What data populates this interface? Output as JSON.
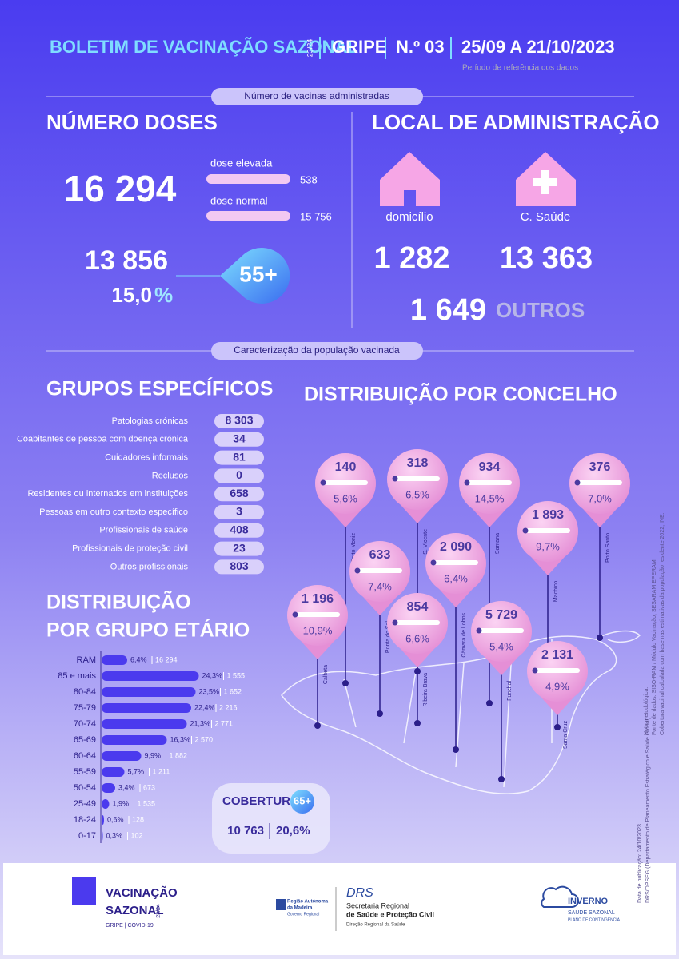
{
  "header": {
    "title": "BOLETIM DE VACINAÇÃO SAZONAL",
    "season": "23/24",
    "disease": "GRIPE",
    "number": "N.º 03",
    "period": "25/09 A 21/10/2023",
    "period_note": "Período de referência dos dados"
  },
  "section1": "Número de vacinas administradas",
  "doses": {
    "title": "NÚMERO DOSES",
    "total": "16 294",
    "high_label": "dose elevada",
    "high": "538",
    "normal_label": "dose normal",
    "normal": "15 756",
    "age55_count": "13 856",
    "age55_pct": "15,0",
    "pct_sign": "%",
    "age55_badge": "55+"
  },
  "local": {
    "title": "LOCAL DE ADMINISTRAÇÃO",
    "home_label": "domicílio",
    "home": "1 282",
    "center_label": "C. Saúde",
    "center": "13 363",
    "other": "1 649",
    "other_label": "OUTROS"
  },
  "section2": "Caracterização da população vacinada",
  "groups": {
    "title": "GRUPOS ESPECÍFICOS",
    "rows": [
      [
        "Patologias crónicas",
        "8 303"
      ],
      [
        "Coabitantes de pessoa com doença crónica",
        "34"
      ],
      [
        "Cuidadores informais",
        "81"
      ],
      [
        "Reclusos",
        "0"
      ],
      [
        "Residentes ou internados em instituições",
        "658"
      ],
      [
        "Pessoas em outro contexto específico",
        "3"
      ],
      [
        "Profissionais de saúde",
        "408"
      ],
      [
        "Profissionais de proteção civil",
        "23"
      ],
      [
        "Outros profissionais",
        "803"
      ]
    ]
  },
  "municipalities": {
    "title": "DISTRIBUIÇÃO POR CONCELHO",
    "items": [
      {
        "name": "Porto Moniz",
        "value": "140",
        "pct": "5,6%"
      },
      {
        "name": "S. Vicente",
        "value": "318",
        "pct": "6,5%"
      },
      {
        "name": "Santana",
        "value": "934",
        "pct": "14,5%"
      },
      {
        "name": "Porto Santo",
        "value": "376",
        "pct": "7,0%"
      },
      {
        "name": "Machico",
        "value": "1 893",
        "pct": "9,7%"
      },
      {
        "name": "Câmara de Lobos",
        "value": "2 090",
        "pct": "6,4%"
      },
      {
        "name": "Ponta do Sol",
        "value": "633",
        "pct": "7,4%"
      },
      {
        "name": "Calheta",
        "value": "1 196",
        "pct": "10,9%"
      },
      {
        "name": "Ribeira Brava",
        "value": "854",
        "pct": "6,6%"
      },
      {
        "name": "Funchal",
        "value": "5 729",
        "pct": "5,4%"
      },
      {
        "name": "Santa Cruz",
        "value": "2 131",
        "pct": "4,9%"
      }
    ]
  },
  "age": {
    "title_line1": "DISTRIBUIÇÃO",
    "title_line2": "POR GRUPO ETÁRIO",
    "groups": [
      {
        "label": "RAM",
        "pct": 6.4,
        "pct_label": "6,4%",
        "count": "16 294"
      },
      {
        "label": "85 e mais",
        "pct": 24.3,
        "pct_label": "24,3%",
        "count": "1 555"
      },
      {
        "label": "80-84",
        "pct": 23.5,
        "pct_label": "23,5%",
        "count": "1 652"
      },
      {
        "label": "75-79",
        "pct": 22.4,
        "pct_label": "22,4%",
        "count": "2 216"
      },
      {
        "label": "70-74",
        "pct": 21.3,
        "pct_label": "21,3%",
        "count": "2 771"
      },
      {
        "label": "65-69",
        "pct": 16.3,
        "pct_label": "16,3%",
        "count": "2 570"
      },
      {
        "label": "60-64",
        "pct": 9.9,
        "pct_label": "9,9%",
        "count": "1 882"
      },
      {
        "label": "55-59",
        "pct": 5.7,
        "pct_label": "5,7%",
        "count": "1 211"
      },
      {
        "label": "50-54",
        "pct": 3.4,
        "pct_label": "3,4%",
        "count": "673"
      },
      {
        "label": "25-49",
        "pct": 1.9,
        "pct_label": "1,9%",
        "count": "1 535"
      },
      {
        "label": "18-24",
        "pct": 0.6,
        "pct_label": "0,6%",
        "count": "128"
      },
      {
        "label": "0-17",
        "pct": 0.3,
        "pct_label": "0,3%",
        "count": "102"
      }
    ]
  },
  "coverage": {
    "title": "COBERTURA",
    "badge": "65+",
    "count": "10 763",
    "pct": "20,6%"
  },
  "notes": [
    "Nota metodológica:",
    "Fonte de dados: SISO-RAM / Módulo Vacinação, SESARAM EPERAM",
    "Cobertura vacinal calculada com base nas estimativas da população residente 2022, INE.",
    "Data de publicação: 24/10/2023",
    "DRS/DPSEG (Departamento de Planeamento Estratégico e Saúde Global)"
  ],
  "footer": {
    "campaign1": "VACINAÇÃO",
    "campaign2": "SAZONAL",
    "campaign_season": "23/24",
    "campaign_sub": "GRIPE | COVID-19",
    "region1": "Região Autónoma",
    "region2": "da Madeira",
    "region3": "Governo Regional",
    "drs": "DRS",
    "sec1": "Secretaria Regional",
    "sec2": "de Saúde e Proteção Civil",
    "sec3": "Direção Regional da Saúde",
    "winter": "INVERNO",
    "winter_sub": "SAÚDE SAZONAL",
    "winter_plan": "PLANO DE CONTINGÊNCIA"
  }
}
